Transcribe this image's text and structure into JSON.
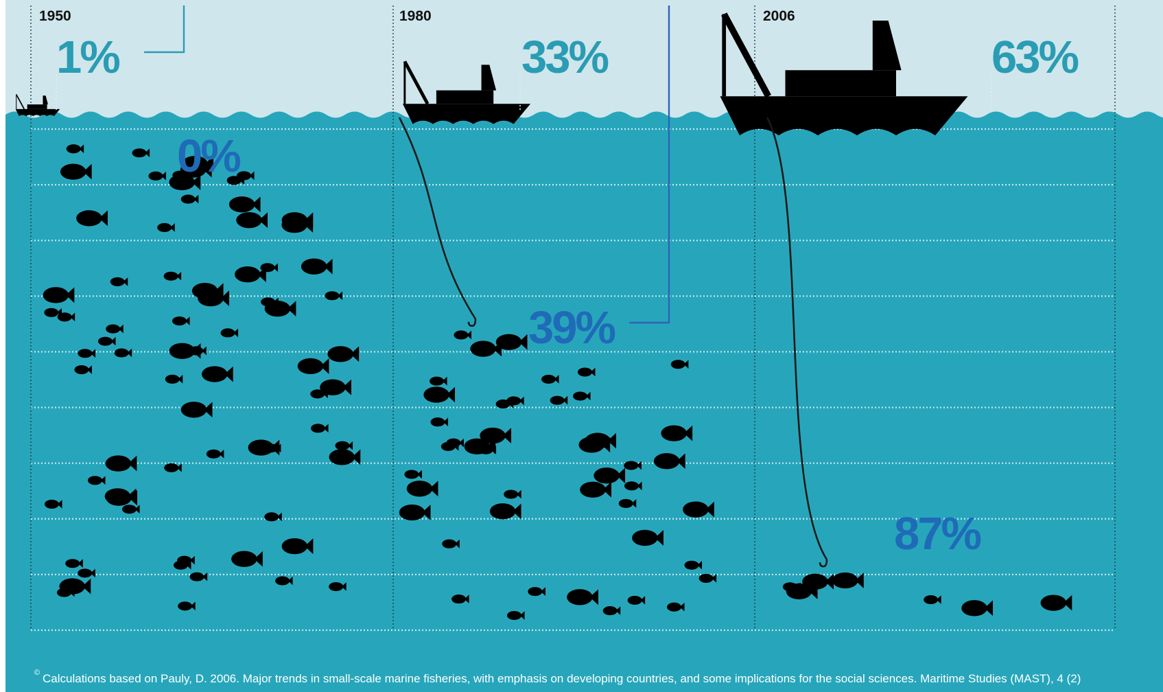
{
  "colors": {
    "sky": "#cfe6ec",
    "sea": "#27a6bb",
    "silhouette": "#000000",
    "boat_percent": "#2a9cb3",
    "depth_percent": "#1f6bb7",
    "gridline": "#d9f1f5",
    "marker_line": "#2f63b8"
  },
  "chart_data": {
    "type": "infographic",
    "x_categories": [
      "1950",
      "1980",
      "2006"
    ],
    "series": [
      {
        "values": [
          1,
          33,
          63
        ],
        "labels": [
          "1%",
          "33%",
          "63%"
        ]
      },
      {
        "values": [
          0,
          39,
          87
        ],
        "labels": [
          "0%",
          "39%",
          "87%"
        ]
      }
    ],
    "footnote_marker": "©",
    "footnote": "Calculations based on Pauly, D. 2006. Major trends in small-scale marine fisheries, with emphasis on developing countries, and some implications for the social sciences. Maritime Studies (MAST), 4 (2)"
  }
}
